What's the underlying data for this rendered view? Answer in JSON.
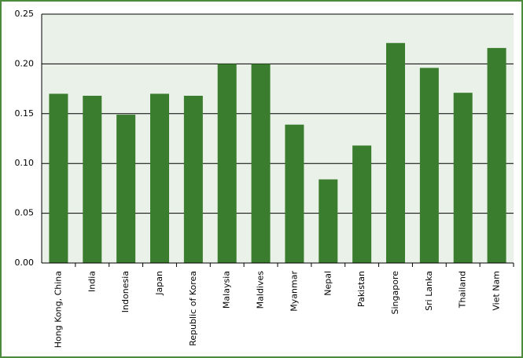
{
  "chart_data": {
    "type": "bar",
    "categories": [
      "Hong Kong, China",
      "India",
      "Indonesia",
      "Japan",
      "Republic of Korea",
      "Malaysia",
      "Maldives",
      "Myanmar",
      "Nepal",
      "Pakistan",
      "Singapore",
      "Sri Lanka",
      "Thailand",
      "Viet Nam"
    ],
    "values": [
      0.17,
      0.168,
      0.149,
      0.17,
      0.168,
      0.2,
      0.2,
      0.139,
      0.084,
      0.118,
      0.221,
      0.196,
      0.171,
      0.216
    ],
    "color": "#3b7d2e",
    "ylim": [
      0,
      0.25
    ],
    "yticks": [
      {
        "value": 0,
        "label": "0.00"
      },
      {
        "value": 0.05,
        "label": "0.05"
      },
      {
        "value": 0.1,
        "label": "0.10"
      },
      {
        "value": 0.15,
        "label": "0.15"
      },
      {
        "value": 0.2,
        "label": "0.20"
      },
      {
        "value": 0.25,
        "label": "0.25"
      }
    ],
    "grid": true
  }
}
